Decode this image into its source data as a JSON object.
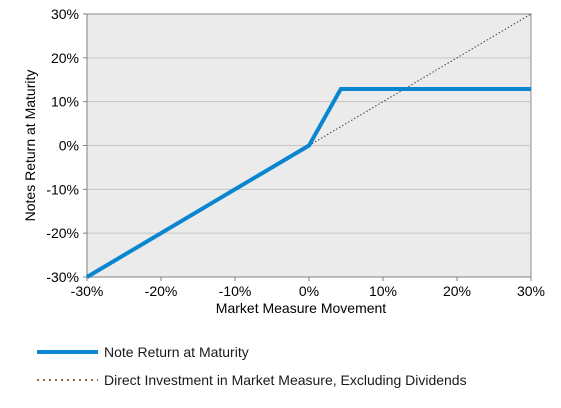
{
  "chart_data": {
    "type": "line",
    "xlabel": "Market Measure Movement",
    "ylabel": "Notes Return at Maturity",
    "xlim": [
      -30,
      30
    ],
    "ylim": [
      -30,
      30
    ],
    "x_ticks": [
      -30,
      -20,
      -10,
      0,
      10,
      20,
      30
    ],
    "y_ticks": [
      -30,
      -20,
      -10,
      0,
      10,
      20,
      30
    ],
    "x_tick_labels": [
      "-30%",
      "-20%",
      "-10%",
      "0%",
      "10%",
      "20%",
      "30%"
    ],
    "y_tick_labels": [
      "-30%",
      "-20%",
      "-10%",
      "0%",
      "10%",
      "20%",
      "30%"
    ],
    "grid": "horizontal",
    "plot_background": "#ebebeb",
    "series": [
      {
        "name": "Note Return at Maturity",
        "color": "#0a86d0",
        "style": "solid",
        "x": [
          -30,
          0,
          4.3,
          30
        ],
        "y": [
          -30,
          0,
          12.9,
          12.9
        ]
      },
      {
        "name": "Direct Investment in Market Measure, Excluding Dividends",
        "color": "#3f3f3f",
        "style": "dotted",
        "x": [
          0,
          30
        ],
        "y": [
          0,
          30
        ]
      }
    ],
    "legend_placement": "bottom"
  }
}
